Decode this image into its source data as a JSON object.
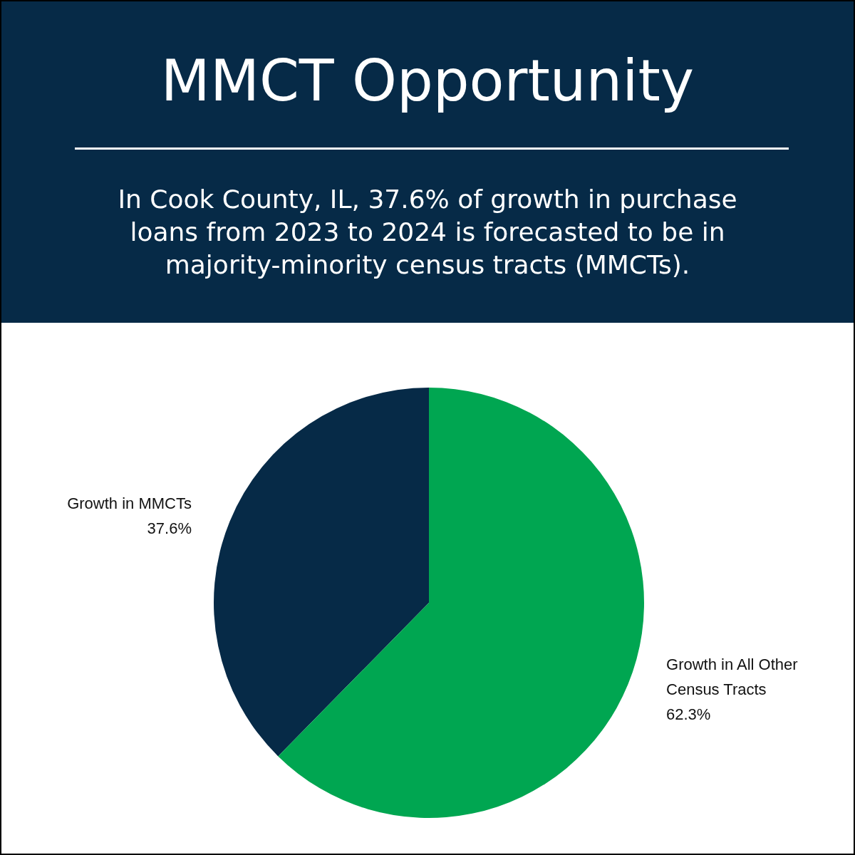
{
  "chart_data": {
    "type": "pie",
    "title": "MMCT Opportunity",
    "subtitle": "In Cook County, IL, 37.6% of growth in purchase loans from 2023 to 2024 is forecasted to be in majority-minority census tracts (MMCTs).",
    "categories": [
      "Growth in MMCTs",
      "Growth in All Other Census Tracts"
    ],
    "values": [
      37.6,
      62.3
    ],
    "value_labels": [
      "37.6%",
      "62.3%"
    ],
    "colors": [
      "#062a47",
      "#00a651"
    ],
    "legend": false
  }
}
